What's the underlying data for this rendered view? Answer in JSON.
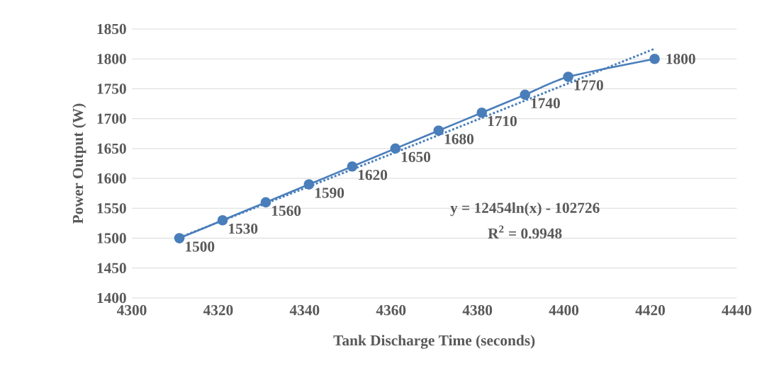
{
  "chart_data": {
    "type": "line",
    "xlabel": "Tank Discharge Time (seconds)",
    "ylabel": "Power Output (W)",
    "series": [
      {
        "color": "#4a7ebb",
        "marker": "circle",
        "line_style": "solid",
        "x": [
          4311,
          4321,
          4331,
          4341,
          4351,
          4361,
          4371,
          4381,
          4391,
          4401,
          4421
        ],
        "values": [
          1500,
          1530,
          1560,
          1590,
          1620,
          1650,
          1680,
          1710,
          1740,
          1770,
          1800
        ],
        "value_labels": [
          "1500",
          "1530",
          "1560",
          "1590",
          "1620",
          "1650",
          "1680",
          "1710",
          "1740",
          "1770",
          "1800"
        ]
      },
      {
        "color": "#4a7ebb",
        "marker": "none",
        "line_style": "dotted",
        "x": [
          4311,
          4366,
          4421
        ],
        "values": [
          1501,
          1658,
          1817
        ]
      }
    ],
    "annotations": [
      "y = 12454ln(x) - 102726",
      "R$^{2}$ = 0.9948"
    ],
    "xlim": [
      4300,
      4440
    ],
    "ylim": [
      1400,
      1850
    ],
    "xticks": [
      4300,
      4320,
      4340,
      4360,
      4380,
      4400,
      4420,
      4440
    ],
    "yticks": [
      1400,
      1450,
      1500,
      1550,
      1600,
      1650,
      1700,
      1750,
      1800,
      1850
    ],
    "grid": "y"
  }
}
